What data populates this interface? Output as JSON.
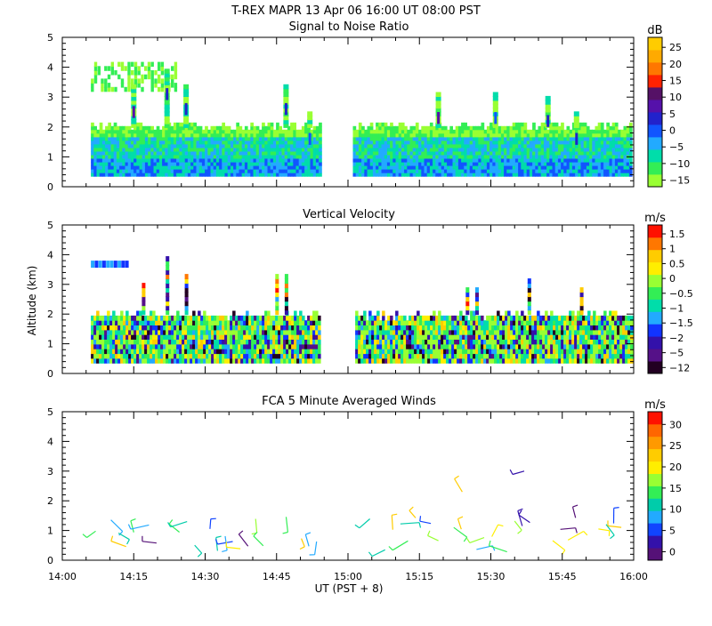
{
  "header": {
    "title": "T-REX  MAPR 13 Apr 06  16:00 UT  08:00  PST"
  },
  "x_axis": {
    "label": "UT  (PST + 8)",
    "ticks": [
      "14:00",
      "14:15",
      "14:30",
      "14:45",
      "15:00",
      "15:15",
      "15:30",
      "15:45",
      "16:00"
    ],
    "range_minutes": [
      0,
      120
    ]
  },
  "y_axis": {
    "label": "Altitude (km)",
    "ticks": [
      "0",
      "1",
      "2",
      "3",
      "4",
      "5"
    ],
    "range_km": [
      0,
      5
    ]
  },
  "colors": {
    "snr": [
      "#99ff33",
      "#33ee55",
      "#00ddaa",
      "#22aaff",
      "#1155ff",
      "#2222cc",
      "#5511aa",
      "#551166",
      "#ff2200",
      "#ff7700",
      "#ffaa00",
      "#ffcc00"
    ],
    "velocity": [
      "#220022",
      "#551188",
      "#3311aa",
      "#1133ff",
      "#22aaff",
      "#00ddaa",
      "#33ee55",
      "#99ff33",
      "#ffee00",
      "#ffcc00",
      "#ff7700",
      "#ff1100"
    ],
    "winds": [
      "#551177",
      "#3311aa",
      "#1144ff",
      "#22aaff",
      "#00ccaa",
      "#33ee55",
      "#99ff33",
      "#ffee00",
      "#ffcc00",
      "#ff9900",
      "#ff6600",
      "#ff1100"
    ]
  },
  "chart_data": [
    {
      "type": "heatmap",
      "title": "Signal to Noise Ratio",
      "unit": "dB",
      "colorbar_ticks": [
        "25",
        "20",
        "15",
        "10",
        "5",
        "0",
        "−5",
        "−10",
        "−15"
      ],
      "colorbar_range": [
        -15,
        25
      ],
      "gap_minutes": [
        54,
        61
      ],
      "data_extent_minutes": [
        6,
        120
      ],
      "boundary_layer_top_km": 2.0,
      "columns": [
        {
          "t": 22,
          "top_km": 3.9
        },
        {
          "t": 26,
          "top_km": 3.4
        },
        {
          "t": 15,
          "top_km": 3.3
        },
        {
          "t": 47,
          "top_km": 3.4
        },
        {
          "t": 52,
          "top_km": 2.4
        },
        {
          "t": 79,
          "top_km": 3.1
        },
        {
          "t": 91,
          "top_km": 3.1
        },
        {
          "t": 102,
          "top_km": 3.0
        },
        {
          "t": 108,
          "top_km": 2.4
        }
      ]
    },
    {
      "type": "heatmap",
      "title": "Vertical Velocity",
      "unit": "m/s",
      "colorbar_ticks": [
        "1.5",
        "1",
        "0.5",
        "0",
        "−0.5",
        "−1",
        "−1.5",
        "−2",
        "−5",
        "−12"
      ],
      "colorbar_range": [
        -12,
        1.5
      ],
      "gap_minutes": [
        54,
        61
      ],
      "data_extent_minutes": [
        6,
        120
      ],
      "boundary_layer_top_km": 1.9
    },
    {
      "type": "scatter",
      "title": "FCA 5 Minute Averaged Winds",
      "unit": "m/s",
      "colorbar_ticks": [
        "30",
        "25",
        "20",
        "15",
        "10",
        "5",
        "0"
      ],
      "colorbar_range": [
        0,
        30
      ],
      "note": "wind barbs plotted at 5 minute intervals near 0–1.5 km; ~3 km barb near 15:37"
    }
  ]
}
